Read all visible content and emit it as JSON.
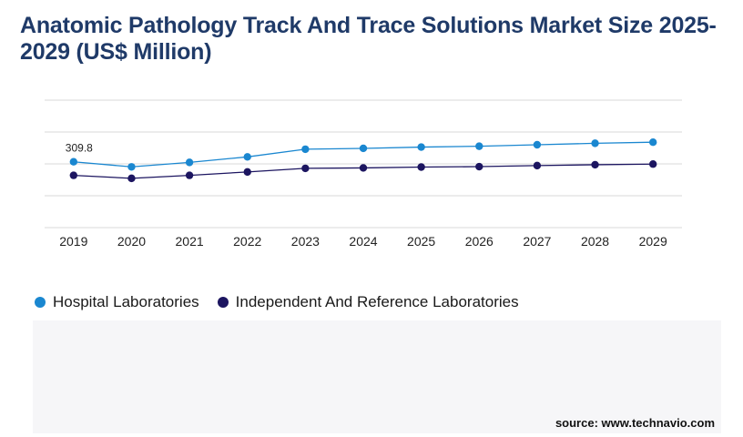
{
  "title": "Anatomic Pathology Track And Trace Solutions Market Size 2025-2029 (US$ Million)",
  "source": "source: www.technavio.com",
  "colors": {
    "hospital": "#1a87d0",
    "independent": "#1c1560",
    "grid": "#d9d9d9",
    "title": "#1f3a68"
  },
  "chart_data": {
    "type": "line",
    "title": "Anatomic Pathology Track And Trace Solutions Market Size 2025-2029 (US$ Million)",
    "xlabel": "",
    "ylabel": "",
    "grid": true,
    "legend_position": "bottom-left",
    "categories": [
      "2019",
      "2020",
      "2021",
      "2022",
      "2023",
      "2024",
      "2025",
      "2026",
      "2027",
      "2028",
      "2029"
    ],
    "ylim": [
      0,
      600
    ],
    "series": [
      {
        "name": "Hospital Laboratories",
        "values": [
          309.8,
          286,
          307,
          333,
          369,
          373,
          379,
          383,
          390,
          397,
          402
        ]
      },
      {
        "name": "Independent And Reference Laboratories",
        "values": [
          246,
          232,
          246,
          262,
          279,
          281,
          285,
          287,
          292,
          296,
          299
        ]
      }
    ],
    "data_labels": [
      {
        "series": 0,
        "index": 0,
        "text": "309.8"
      }
    ]
  }
}
